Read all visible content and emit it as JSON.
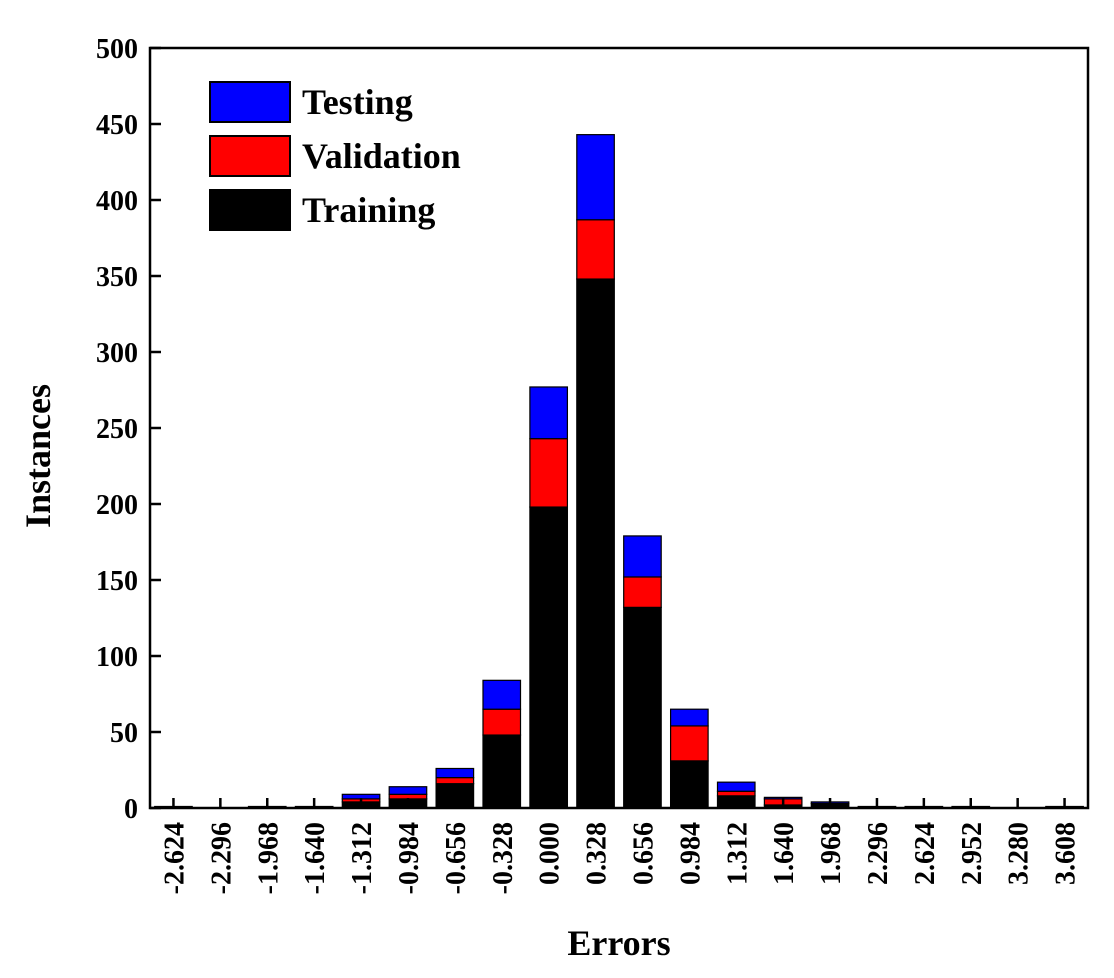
{
  "chart_data": {
    "type": "bar",
    "stacked": true,
    "xlabel": "Errors",
    "ylabel": "Instances",
    "ylim": [
      0,
      500
    ],
    "yticks": [
      0,
      50,
      100,
      150,
      200,
      250,
      300,
      350,
      400,
      450,
      500
    ],
    "categories": [
      "-2.624",
      "-2.296",
      "-1.968",
      "-1.640",
      "-1.312",
      "-0.984",
      "-0.656",
      "-0.328",
      "0.000",
      "0.328",
      "0.656",
      "0.984",
      "1.312",
      "1.640",
      "1.968",
      "2.296",
      "2.624",
      "2.952",
      "3.280",
      "3.608"
    ],
    "series": [
      {
        "name": "Training",
        "color": "#000000",
        "values": [
          1,
          0,
          1,
          0,
          4,
          6,
          16,
          48,
          198,
          348,
          132,
          31,
          8,
          2,
          3,
          1,
          0,
          1,
          0,
          1
        ]
      },
      {
        "name": "Validation",
        "color": "#ff0000",
        "values": [
          0,
          0,
          0,
          1,
          2,
          3,
          4,
          17,
          45,
          39,
          20,
          23,
          3,
          4,
          0,
          0,
          0,
          0,
          0,
          0
        ]
      },
      {
        "name": "Testing",
        "color": "#0000ff",
        "values": [
          0,
          0,
          0,
          0,
          3,
          5,
          6,
          19,
          34,
          56,
          27,
          11,
          6,
          1,
          1,
          0,
          1,
          0,
          0,
          0
        ]
      }
    ],
    "legend": {
      "placement": "top-left",
      "order": [
        "Testing",
        "Validation",
        "Training"
      ]
    },
    "grid": false
  }
}
